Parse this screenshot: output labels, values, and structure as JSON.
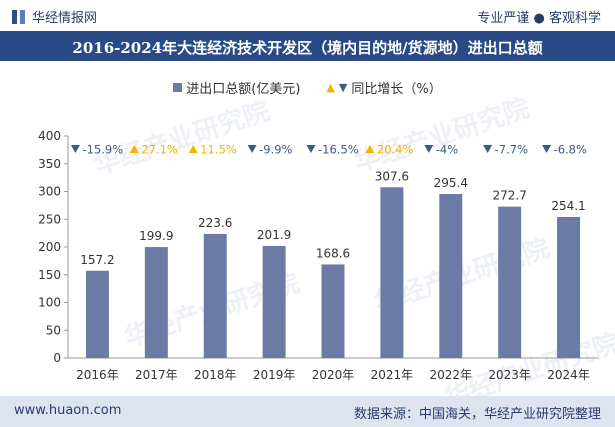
{
  "header": {
    "brand": "华经情报网",
    "tagline": "专业严谨 ● 客观科学"
  },
  "title": "2016-2024年大连经济技术开发区（境内目的地/货源地）进出口总额",
  "legend": {
    "bar_label": "进出口总额(亿美元)",
    "line_label": "同比增长（%）"
  },
  "watermark": "华经产业研究院",
  "footer": {
    "left": "www.huaon.com",
    "right": "数据来源：中国海关，华经产业研究院整理"
  },
  "colors": {
    "bar": "#6c7aa6",
    "up": "#f0b400",
    "down": "#3d5a80",
    "title_bg": "#2a4a86"
  },
  "chart_data": {
    "type": "bar",
    "categories": [
      "2016年",
      "2017年",
      "2018年",
      "2019年",
      "2020年",
      "2021年",
      "2022年",
      "2023年",
      "2024年"
    ],
    "series": [
      {
        "name": "进出口总额(亿美元)",
        "values": [
          157.2,
          199.9,
          223.6,
          201.9,
          168.6,
          307.6,
          295.4,
          272.7,
          254.1
        ]
      },
      {
        "name": "同比增长（%）",
        "values": [
          -15.9,
          27.1,
          11.5,
          -9.9,
          -16.5,
          20.4,
          -4,
          -7.7,
          -6.8
        ]
      }
    ],
    "growth_labels": [
      "-15.9%",
      "27.1%",
      "11.5%",
      "-9.9%",
      "-16.5%",
      "20.4%",
      "-4%",
      "-7.7%",
      "-6.8%"
    ],
    "ylim": [
      0,
      400
    ],
    "yticks": [
      0,
      50,
      100,
      150,
      200,
      250,
      300,
      350,
      400
    ],
    "legend_position": "top"
  }
}
